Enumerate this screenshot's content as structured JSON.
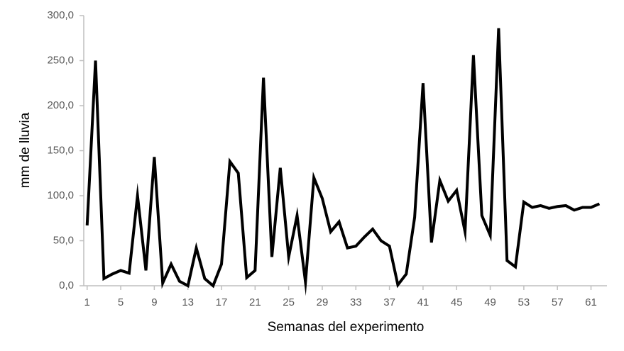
{
  "chart_data": {
    "type": "line",
    "xlabel": "Semanas del experimento",
    "ylabel": "mm de lluvia",
    "x": [
      1,
      2,
      3,
      4,
      5,
      6,
      7,
      8,
      9,
      10,
      11,
      12,
      13,
      14,
      15,
      16,
      17,
      18,
      19,
      20,
      21,
      22,
      23,
      24,
      25,
      26,
      27,
      28,
      29,
      30,
      31,
      32,
      33,
      34,
      35,
      36,
      37,
      38,
      39,
      40,
      41,
      42,
      43,
      44,
      45,
      46,
      47,
      48,
      49,
      50,
      51,
      52,
      53,
      54,
      55,
      56,
      57,
      58,
      59,
      60,
      61,
      62
    ],
    "series": [
      {
        "color": "#000000",
        "values": [
          67,
          250,
          8,
          13,
          17,
          14,
          100,
          17,
          143,
          3,
          24,
          5,
          0,
          42,
          8,
          0,
          24,
          138,
          125,
          9,
          17,
          231,
          32,
          131,
          32,
          78,
          4,
          120,
          97,
          60,
          71,
          42,
          44,
          54,
          63,
          50,
          44,
          1,
          13,
          76,
          225,
          48,
          117,
          94,
          106,
          60,
          256,
          78,
          56,
          286,
          28,
          21,
          93,
          87,
          89,
          86,
          88,
          89,
          84,
          87,
          87,
          91
        ]
      }
    ],
    "xlim": [
      0.6,
      62.9
    ],
    "xticks": [
      1,
      5,
      9,
      13,
      17,
      21,
      25,
      29,
      33,
      37,
      41,
      45,
      49,
      53,
      57,
      61
    ],
    "ylim": [
      0,
      300
    ],
    "yticks": [
      {
        "value": 0,
        "label": "0,0"
      },
      {
        "value": 50,
        "label": "50,0"
      },
      {
        "value": 100,
        "label": "100,0"
      },
      {
        "value": 150,
        "label": "150,0"
      },
      {
        "value": 200,
        "label": "200,0"
      },
      {
        "value": 250,
        "label": "250,0"
      },
      {
        "value": 300,
        "label": "300,0"
      }
    ]
  }
}
